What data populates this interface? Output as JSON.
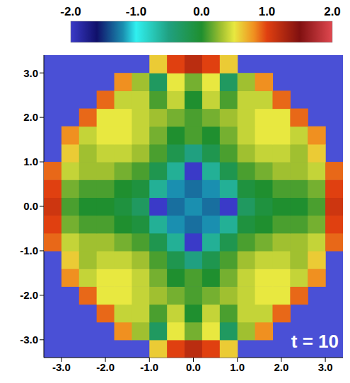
{
  "chart_data": {
    "type": "heatmap",
    "annotations": [
      "t = 10"
    ],
    "x": [
      -3.2,
      -2.8,
      -2.4,
      -2.0,
      -1.6,
      -1.2,
      -0.8,
      -0.4,
      0.0,
      0.4,
      0.8,
      1.2,
      1.6,
      2.0,
      2.4,
      2.8,
      3.2
    ],
    "y": [
      -3.2,
      -2.8,
      -2.4,
      -2.0,
      -1.6,
      -1.2,
      -0.8,
      -0.4,
      0.0,
      0.4,
      0.8,
      1.2,
      1.6,
      2.0,
      2.4,
      2.8,
      3.2
    ],
    "cells": [
      [
        null,
        null,
        null,
        null,
        null,
        null,
        0.6,
        1.0,
        1.2,
        1.0,
        0.6,
        null,
        null,
        null,
        null,
        null,
        null
      ],
      [
        null,
        null,
        null,
        null,
        0.8,
        0.3,
        -0.3,
        0.5,
        0.2,
        0.5,
        -0.3,
        0.3,
        0.8,
        null,
        null,
        null,
        null
      ],
      [
        null,
        null,
        null,
        0.9,
        0.4,
        0.4,
        0.1,
        0.4,
        0.0,
        0.4,
        0.1,
        0.4,
        0.4,
        0.9,
        null,
        null,
        null
      ],
      [
        null,
        null,
        0.9,
        0.5,
        0.5,
        0.4,
        0.3,
        0.2,
        0.1,
        0.2,
        0.3,
        0.4,
        0.5,
        0.5,
        0.9,
        null,
        null
      ],
      [
        null,
        0.8,
        0.4,
        0.5,
        0.5,
        0.4,
        0.2,
        0.0,
        0.1,
        0.0,
        0.2,
        0.4,
        0.5,
        0.5,
        0.4,
        0.8,
        null
      ],
      [
        null,
        0.6,
        0.3,
        0.4,
        0.4,
        0.3,
        0.1,
        -0.2,
        -0.5,
        -0.2,
        0.1,
        0.3,
        0.4,
        0.4,
        0.3,
        0.6,
        null
      ],
      [
        0.9,
        0.4,
        0.3,
        0.3,
        0.2,
        0.1,
        -0.2,
        -0.6,
        -2.0,
        -0.6,
        -0.2,
        0.1,
        0.2,
        0.3,
        0.3,
        0.4,
        0.9
      ],
      [
        1.0,
        0.2,
        0.1,
        0.1,
        0.0,
        -0.1,
        -0.6,
        -1.2,
        -1.3,
        -1.2,
        -0.6,
        -0.1,
        0.0,
        0.1,
        0.1,
        0.2,
        1.0
      ],
      [
        1.1,
        0.1,
        0.0,
        0.0,
        -0.1,
        -0.3,
        -2.0,
        -1.3,
        -1.2,
        -1.3,
        -2.0,
        -0.3,
        -0.1,
        0.0,
        0.0,
        0.1,
        1.1
      ],
      [
        1.0,
        0.2,
        0.1,
        0.1,
        0.0,
        -0.1,
        -0.6,
        -1.2,
        -1.3,
        -1.2,
        -0.6,
        -0.1,
        0.0,
        0.1,
        0.1,
        0.2,
        1.0
      ],
      [
        0.9,
        0.4,
        0.3,
        0.3,
        0.2,
        0.1,
        -0.2,
        -0.6,
        -2.0,
        -0.6,
        -0.2,
        0.1,
        0.2,
        0.3,
        0.3,
        0.4,
        0.9
      ],
      [
        null,
        0.6,
        0.3,
        0.4,
        0.4,
        0.3,
        0.1,
        -0.2,
        -0.5,
        -0.2,
        0.1,
        0.3,
        0.4,
        0.4,
        0.3,
        0.6,
        null
      ],
      [
        null,
        0.8,
        0.4,
        0.5,
        0.5,
        0.4,
        0.2,
        0.0,
        0.1,
        0.0,
        0.2,
        0.4,
        0.5,
        0.5,
        0.4,
        0.8,
        null
      ],
      [
        null,
        null,
        0.9,
        0.5,
        0.5,
        0.4,
        0.3,
        0.2,
        0.1,
        0.2,
        0.3,
        0.4,
        0.5,
        0.5,
        0.9,
        null,
        null
      ],
      [
        null,
        null,
        null,
        0.9,
        0.4,
        0.4,
        0.1,
        0.4,
        0.0,
        0.4,
        0.1,
        0.4,
        0.4,
        0.9,
        null,
        null,
        null
      ],
      [
        null,
        null,
        null,
        null,
        0.8,
        0.3,
        -0.3,
        0.5,
        0.2,
        0.5,
        -0.3,
        0.3,
        0.8,
        null,
        null,
        null,
        null
      ],
      [
        null,
        null,
        null,
        null,
        null,
        null,
        0.6,
        1.0,
        1.2,
        1.0,
        0.6,
        null,
        null,
        null,
        null,
        null,
        null
      ]
    ],
    "xlim": [
      -3.4,
      3.4
    ],
    "ylim": [
      -3.4,
      3.4
    ],
    "xticks": [
      {
        "value": -3,
        "label": "-3.0"
      },
      {
        "value": -2,
        "label": "-2.0"
      },
      {
        "value": -1,
        "label": "-1.0"
      },
      {
        "value": 0,
        "label": "0.0"
      },
      {
        "value": 1,
        "label": "1.0"
      },
      {
        "value": 2,
        "label": "2.0"
      },
      {
        "value": 3,
        "label": "3.0"
      }
    ],
    "yticks": [
      {
        "value": -3,
        "label": "-3.0"
      },
      {
        "value": -2,
        "label": "-2.0"
      },
      {
        "value": -1,
        "label": "-1.0"
      },
      {
        "value": 0,
        "label": "0.0"
      },
      {
        "value": 1,
        "label": "1.0"
      },
      {
        "value": 2,
        "label": "2.0"
      },
      {
        "value": 3,
        "label": "3.0"
      }
    ],
    "colorbar_range": [
      -2,
      2
    ],
    "colorbar_ticks": [
      {
        "value": -2,
        "label": "-2.0"
      },
      {
        "value": -1,
        "label": "-1.0"
      },
      {
        "value": 0,
        "label": "0.0"
      },
      {
        "value": 1,
        "label": "1.0"
      },
      {
        "value": 2,
        "label": "2.0"
      }
    ]
  }
}
